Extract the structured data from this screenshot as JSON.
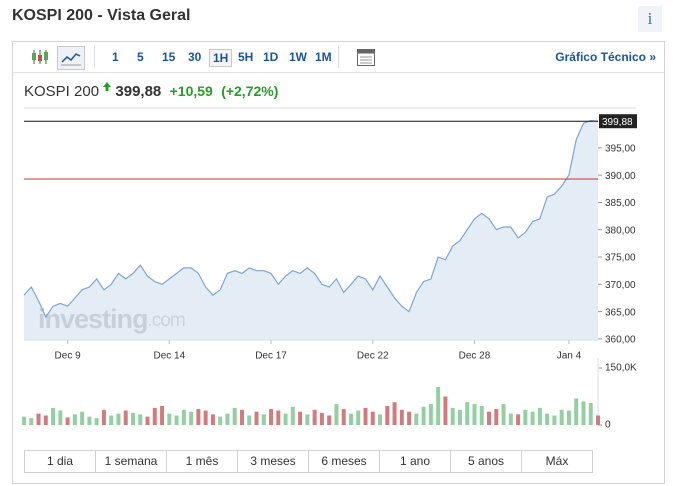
{
  "header": {
    "title": "KOSPI 200 - Vista Geral",
    "info_icon": "i"
  },
  "toolbar": {
    "intervals": [
      "1",
      "5",
      "15",
      "30",
      "1H",
      "5H",
      "1D",
      "1W",
      "1M"
    ],
    "selected": "1H",
    "link": "Gráfico Técnico »"
  },
  "quote": {
    "name": "KOSPI 200",
    "last": "399,88",
    "change": "+10,59",
    "change_pct": "(+2,72%)"
  },
  "chart_data": {
    "type": "line",
    "categories": [
      null,
      null,
      null,
      null,
      null,
      null,
      "Dec 9",
      null,
      null,
      null,
      null,
      null,
      null,
      null,
      null,
      null,
      null,
      null,
      null,
      null,
      "Dec 14",
      null,
      null,
      null,
      null,
      null,
      null,
      null,
      null,
      null,
      null,
      null,
      null,
      null,
      "Dec 17",
      null,
      null,
      null,
      null,
      null,
      null,
      null,
      null,
      null,
      null,
      null,
      null,
      null,
      "Dec 22",
      null,
      null,
      null,
      null,
      null,
      null,
      null,
      null,
      null,
      null,
      null,
      null,
      null,
      "Dec 28",
      null,
      null,
      null,
      null,
      null,
      null,
      null,
      null,
      null,
      null,
      null,
      null,
      "Jan 4",
      null,
      null,
      null,
      null
    ],
    "series": [
      {
        "color": "#7ea6cf",
        "values": [
          368,
          369.5,
          367,
          364,
          366,
          366.5,
          366,
          367.5,
          369,
          369.5,
          371,
          369,
          370,
          372,
          371,
          372,
          373.5,
          371.5,
          370.5,
          370,
          371,
          372,
          373,
          373,
          372,
          369.5,
          368,
          369,
          372,
          372.5,
          372,
          373,
          372.5,
          372.5,
          372,
          370,
          371.5,
          372.5,
          372,
          373,
          372,
          370,
          369.5,
          371,
          368.5,
          370,
          371.5,
          371,
          369,
          371.5,
          369.5,
          367.5,
          366,
          365,
          368.5,
          370.5,
          371,
          375,
          374.5,
          377,
          378,
          380,
          382,
          383,
          382,
          380,
          380.5,
          380.5,
          378.5,
          379.5,
          381.5,
          382,
          386,
          386.5,
          388,
          390,
          396.5,
          399.5,
          400,
          399.88
        ]
      }
    ],
    "ylim": [
      359.8,
      402.3
    ],
    "yticks": [
      {
        "value": 360,
        "label": "360,00"
      },
      {
        "value": 365,
        "label": "365,00"
      },
      {
        "value": 370,
        "label": "370,00"
      },
      {
        "value": 375,
        "label": "375,00"
      },
      {
        "value": 380,
        "label": "380,00"
      },
      {
        "value": 385,
        "label": "385,00"
      },
      {
        "value": 390,
        "label": "390,00"
      },
      {
        "value": 395,
        "label": "395,00"
      }
    ],
    "last_price": {
      "value": 399.88,
      "label": "399,88"
    },
    "previous_close": 389.29,
    "watermark": [
      "investing",
      ".com"
    ],
    "volume": {
      "values": [
        22,
        18,
        30,
        25,
        45,
        38,
        20,
        28,
        35,
        22,
        18,
        40,
        25,
        30,
        38,
        32,
        28,
        22,
        45,
        50,
        30,
        25,
        40,
        35,
        42,
        38,
        28,
        22,
        30,
        45,
        40,
        25,
        35,
        28,
        42,
        38,
        30,
        48,
        35,
        28,
        40,
        32,
        25,
        55,
        42,
        30,
        38,
        45,
        35,
        28,
        50,
        60,
        40,
        35,
        30,
        48,
        55,
        100,
        75,
        45,
        40,
        60,
        55,
        50,
        35,
        42,
        55,
        30,
        28,
        40,
        35,
        45,
        30,
        25,
        40,
        38,
        70,
        62,
        58,
        25
      ],
      "ylim": [
        0,
        150
      ],
      "yticks": [
        {
          "value": 150,
          "label": "150,0K"
        },
        0
      ],
      "up_color": "#94cfa3",
      "down_color": "#d27b7f"
    }
  },
  "ranges": [
    "1 dia",
    "1 semana",
    "1 mês",
    "3 meses",
    "6 meses",
    "1 ano",
    "5 anos",
    "Máx"
  ]
}
